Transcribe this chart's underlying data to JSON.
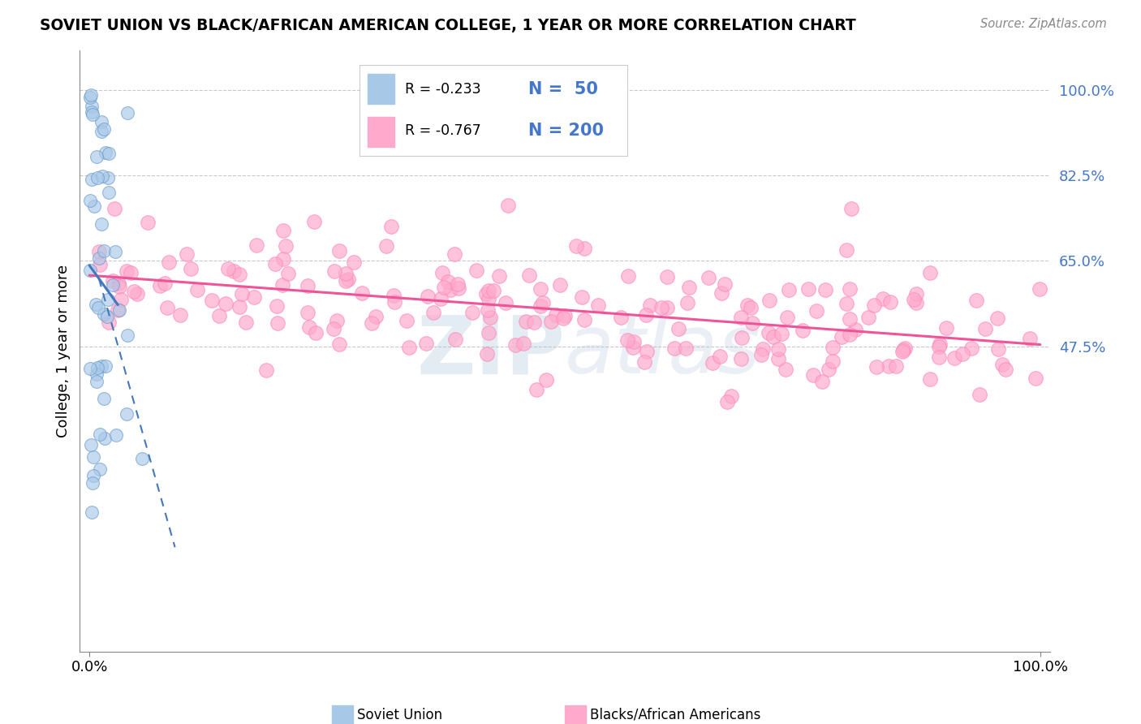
{
  "title": "SOVIET UNION VS BLACK/AFRICAN AMERICAN COLLEGE, 1 YEAR OR MORE CORRELATION CHART",
  "source": "Source: ZipAtlas.com",
  "ylabel": "College, 1 year or more",
  "xlim": [
    -0.01,
    1.01
  ],
  "ylim": [
    -0.15,
    1.08
  ],
  "ytick_vals": [
    0.475,
    0.65,
    0.825,
    1.0
  ],
  "ytick_labels": [
    "47.5%",
    "65.0%",
    "82.5%",
    "100.0%"
  ],
  "xtick_vals": [
    0.0,
    1.0
  ],
  "xtick_labels": [
    "0.0%",
    "100.0%"
  ],
  "legend_r1": "R = -0.233",
  "legend_n1": "N =  50",
  "legend_r2": "R = -0.767",
  "legend_n2": "N = 200",
  "blue_scatter_color": "#a8c8e8",
  "blue_edge_color": "#6699cc",
  "pink_scatter_color": "#ffaacc",
  "pink_edge_color": "#ff88bb",
  "blue_line_color": "#4477bb",
  "pink_line_color": "#ee5599",
  "grid_color": "#bbbbbb",
  "background_color": "#ffffff",
  "watermark_color": "#c8d8e8",
  "blue_n": 50,
  "pink_n": 200,
  "pink_intercept": 0.625,
  "pink_slope": -0.155,
  "blue_intercept": 0.68,
  "blue_slope": -3.5
}
